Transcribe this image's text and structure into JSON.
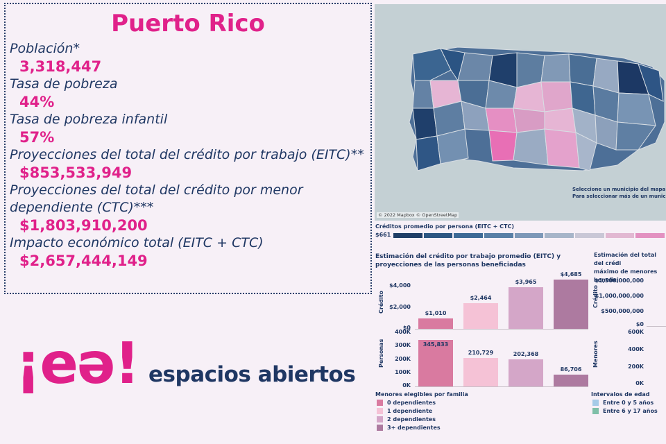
{
  "stats": {
    "title": "Puerto Rico",
    "items": [
      {
        "label": "Población*",
        "value": "3,318,447"
      },
      {
        "label": "Tasa de pobreza",
        "value": "44%"
      },
      {
        "label": "Tasa de pobreza infantil",
        "value": "57%"
      },
      {
        "label": "Proyecciones del total del crédito por trabajo (EITC)**",
        "value": "$853,533,949"
      },
      {
        "label": "Proyecciones del total del crédito por menor dependiente (CTC)***",
        "value": "$1,803,910,200"
      },
      {
        "label": "Impacto económico total (EITC + CTC)",
        "value": "$2,657,444,149"
      }
    ]
  },
  "logo": {
    "mark": "¡eə!",
    "text": "espacios abiertos"
  },
  "map": {
    "note_line1": "Seleccione un municipio del mapa pa",
    "note_line2": "Para seleccionar más de un municipi",
    "credit": "© 2022 Mapbox © OpenStreetMap"
  },
  "color_legend": {
    "title": "Créditos promedio por persona (EITC + CTC)",
    "min_label": "$661",
    "colors": [
      "#1f3e66",
      "#2c5682",
      "#3d6a96",
      "#587fa6",
      "#7d98b8",
      "#a7b5c9",
      "#c9c7d6",
      "#e2b8d2",
      "#e391c1"
    ]
  },
  "chart_eitc": {
    "title_line1": "Estimación del crédito por trabajo promedio (EITC) y",
    "title_line2": "proyecciones de las personas beneficiadas",
    "ylabel_top": "Crédito",
    "ylabel_bottom": "Personas",
    "credit_ticks": [
      "$4,000",
      "$2,000",
      "$0"
    ],
    "people_ticks": [
      "400K",
      "300K",
      "200K",
      "100K",
      "0K"
    ]
  },
  "chart_ctc": {
    "title_line1": "Estimación del total del crédi",
    "title_line2": "máximo de menores benefici",
    "ylabel_top": "Crédito",
    "ylabel_bottom": "Menores",
    "credit_ticks": [
      "$1,500,000,000",
      "$1,000,000,000",
      "$500,000,000",
      "$0"
    ],
    "people_ticks": [
      "600K",
      "400K",
      "200K",
      "0K"
    ]
  },
  "legend_families": {
    "title": "Menores elegibles por familia",
    "items": [
      {
        "label": "0 dependientes",
        "color": "#d97aa0"
      },
      {
        "label": "1 dependiente",
        "color": "#f5c2d6"
      },
      {
        "label": "2 dependientes",
        "color": "#d4a6c8"
      },
      {
        "label": "3+ dependientes",
        "color": "#ad7aa0"
      }
    ]
  },
  "legend_ages": {
    "title": "Intervalos de edad",
    "items": [
      {
        "label": "Entre 0 y 5 años",
        "color": "#a6cbe8"
      },
      {
        "label": "Entre 6 y 17 años",
        "color": "#7fbfa8"
      }
    ]
  },
  "chart_data": {
    "type": "bar",
    "categories": [
      "0 dependientes",
      "1 dependiente",
      "2 dependientes",
      "3+ dependientes"
    ],
    "series": [
      {
        "name": "Crédito",
        "values": [
          1010,
          2464,
          3965,
          4685
        ],
        "labels": [
          "$1,010",
          "$2,464",
          "$3,965",
          "$4,685"
        ]
      },
      {
        "name": "Personas",
        "values": [
          345833,
          210729,
          202368,
          86706
        ],
        "labels": [
          "345,833",
          "210,729",
          "202,368",
          "86,706"
        ]
      }
    ],
    "title": "Estimación del crédito por trabajo promedio (EITC) y proyecciones de las personas beneficiadas",
    "ylim_credit": [
      0,
      5000
    ],
    "ylim_people": [
      0,
      400000
    ]
  }
}
